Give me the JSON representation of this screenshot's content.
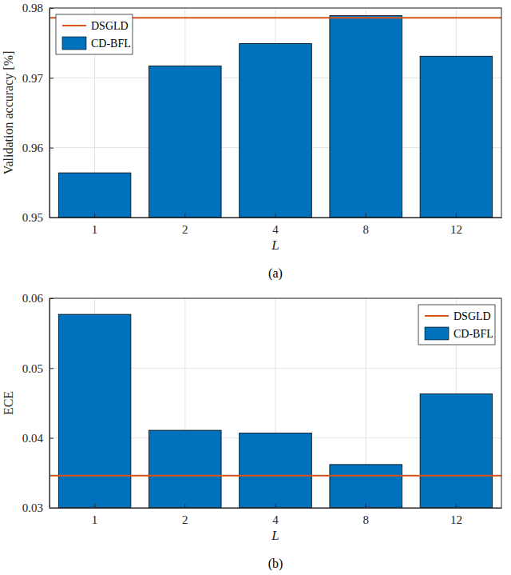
{
  "chart_data": [
    {
      "type": "bar",
      "title": "(a)",
      "x_label": "L",
      "y_label": "Validation accuracy [%]",
      "categories": [
        "1",
        "2",
        "4",
        "8",
        "12"
      ],
      "series": [
        {
          "name": "DSGLD",
          "type": "hline",
          "color": "#d95319",
          "value": 0.9786
        },
        {
          "name": "CD-BFL",
          "type": "bar",
          "color": "#0072bd",
          "values": [
            0.9564,
            0.9717,
            0.9749,
            0.9789,
            0.9731
          ]
        }
      ],
      "ylim": [
        0.95,
        0.98
      ],
      "yticks": [
        0.95,
        0.96,
        0.97,
        0.98
      ],
      "grid": true,
      "legend": "upper left"
    },
    {
      "type": "bar",
      "title": "(b)",
      "x_label": "L",
      "y_label": "ECE",
      "categories": [
        "1",
        "2",
        "4",
        "8",
        "12"
      ],
      "series": [
        {
          "name": "DSGLD",
          "type": "hline",
          "color": "#d95319",
          "value": 0.0346
        },
        {
          "name": "CD-BFL",
          "type": "bar",
          "color": "#0072bd",
          "values": [
            0.0577,
            0.0411,
            0.0407,
            0.0362,
            0.0463
          ]
        }
      ],
      "ylim": [
        0.03,
        0.06
      ],
      "yticks": [
        0.03,
        0.04,
        0.05,
        0.06
      ],
      "grid": true,
      "legend": "upper right"
    }
  ]
}
